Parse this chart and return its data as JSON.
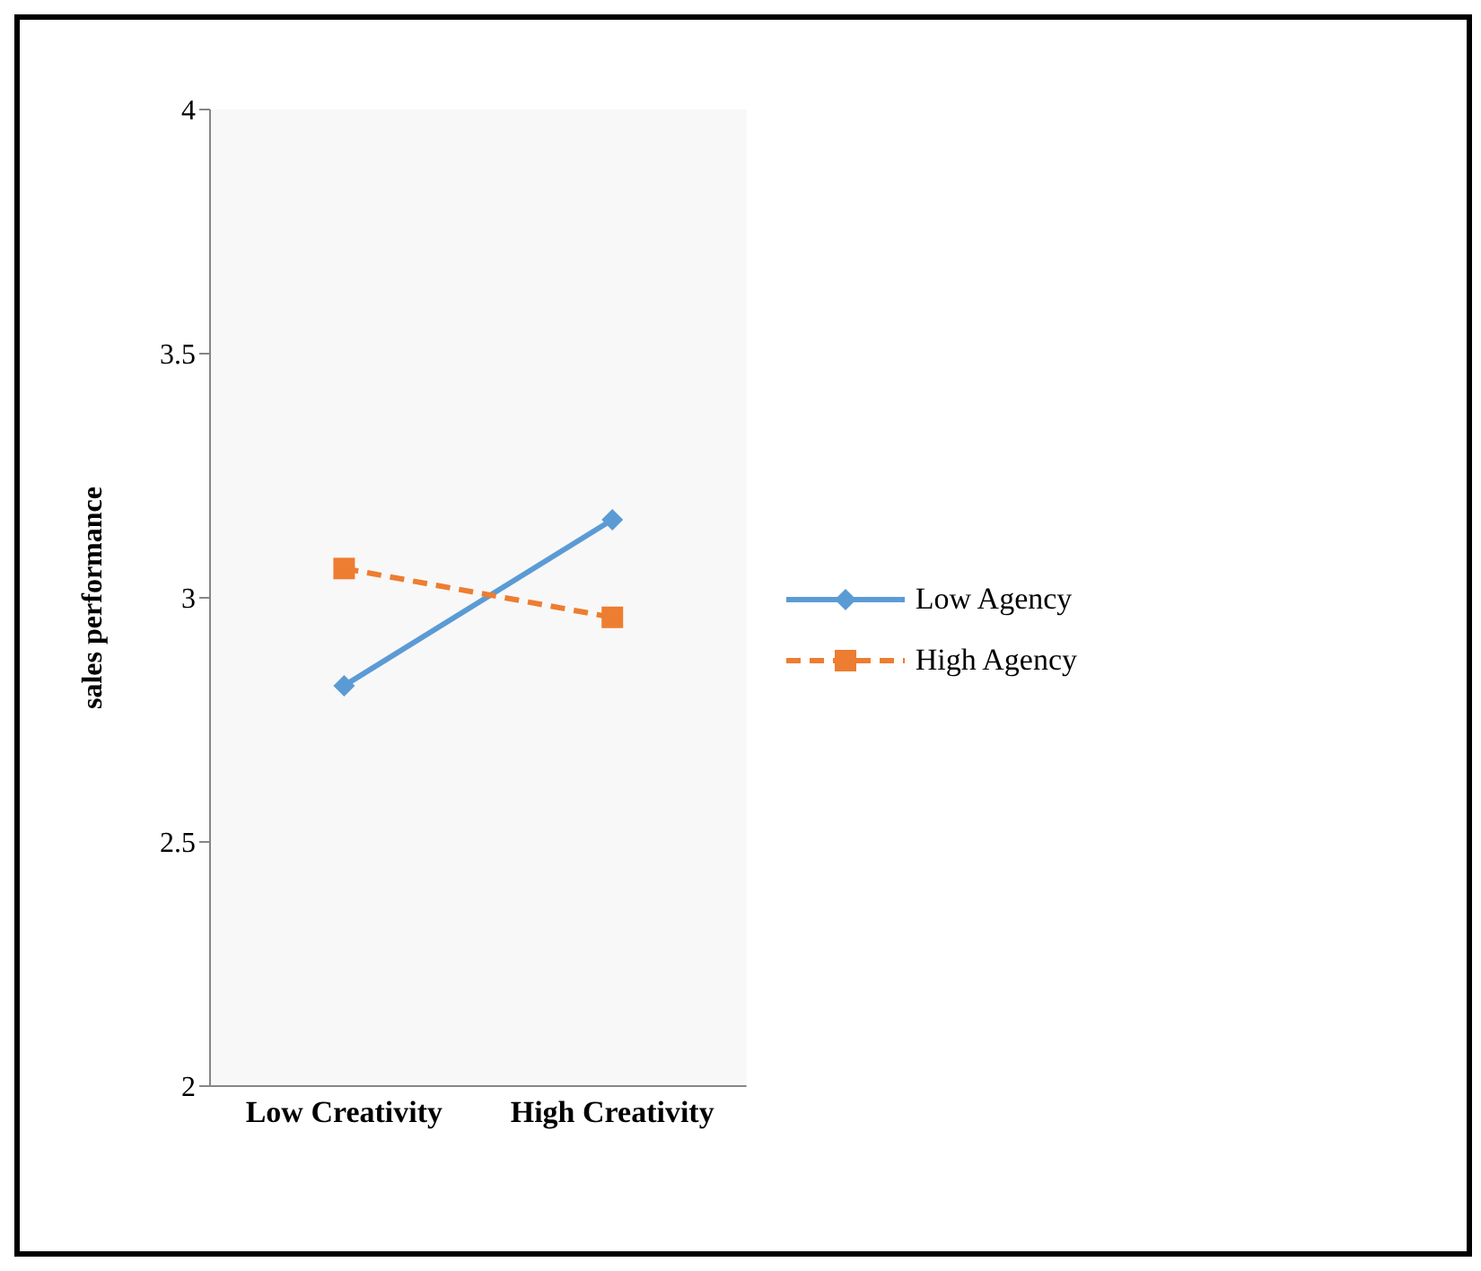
{
  "chart_data": {
    "type": "line",
    "ylabel": "sales performance",
    "categories": [
      "Low Creativity",
      "High Creativity"
    ],
    "series": [
      {
        "name": "Low Agency",
        "color": "#5b9bd5",
        "values": [
          2.82,
          3.16
        ],
        "marker": "diamond",
        "line_style": "solid"
      },
      {
        "name": "High Agency",
        "color": "#ed7d31",
        "values": [
          3.06,
          2.96
        ],
        "marker": "square",
        "line_style": "dashed"
      }
    ],
    "ylim": [
      2,
      4
    ],
    "yticks": [
      2,
      2.5,
      3,
      3.5,
      4
    ],
    "grid": false,
    "legend": "right"
  }
}
